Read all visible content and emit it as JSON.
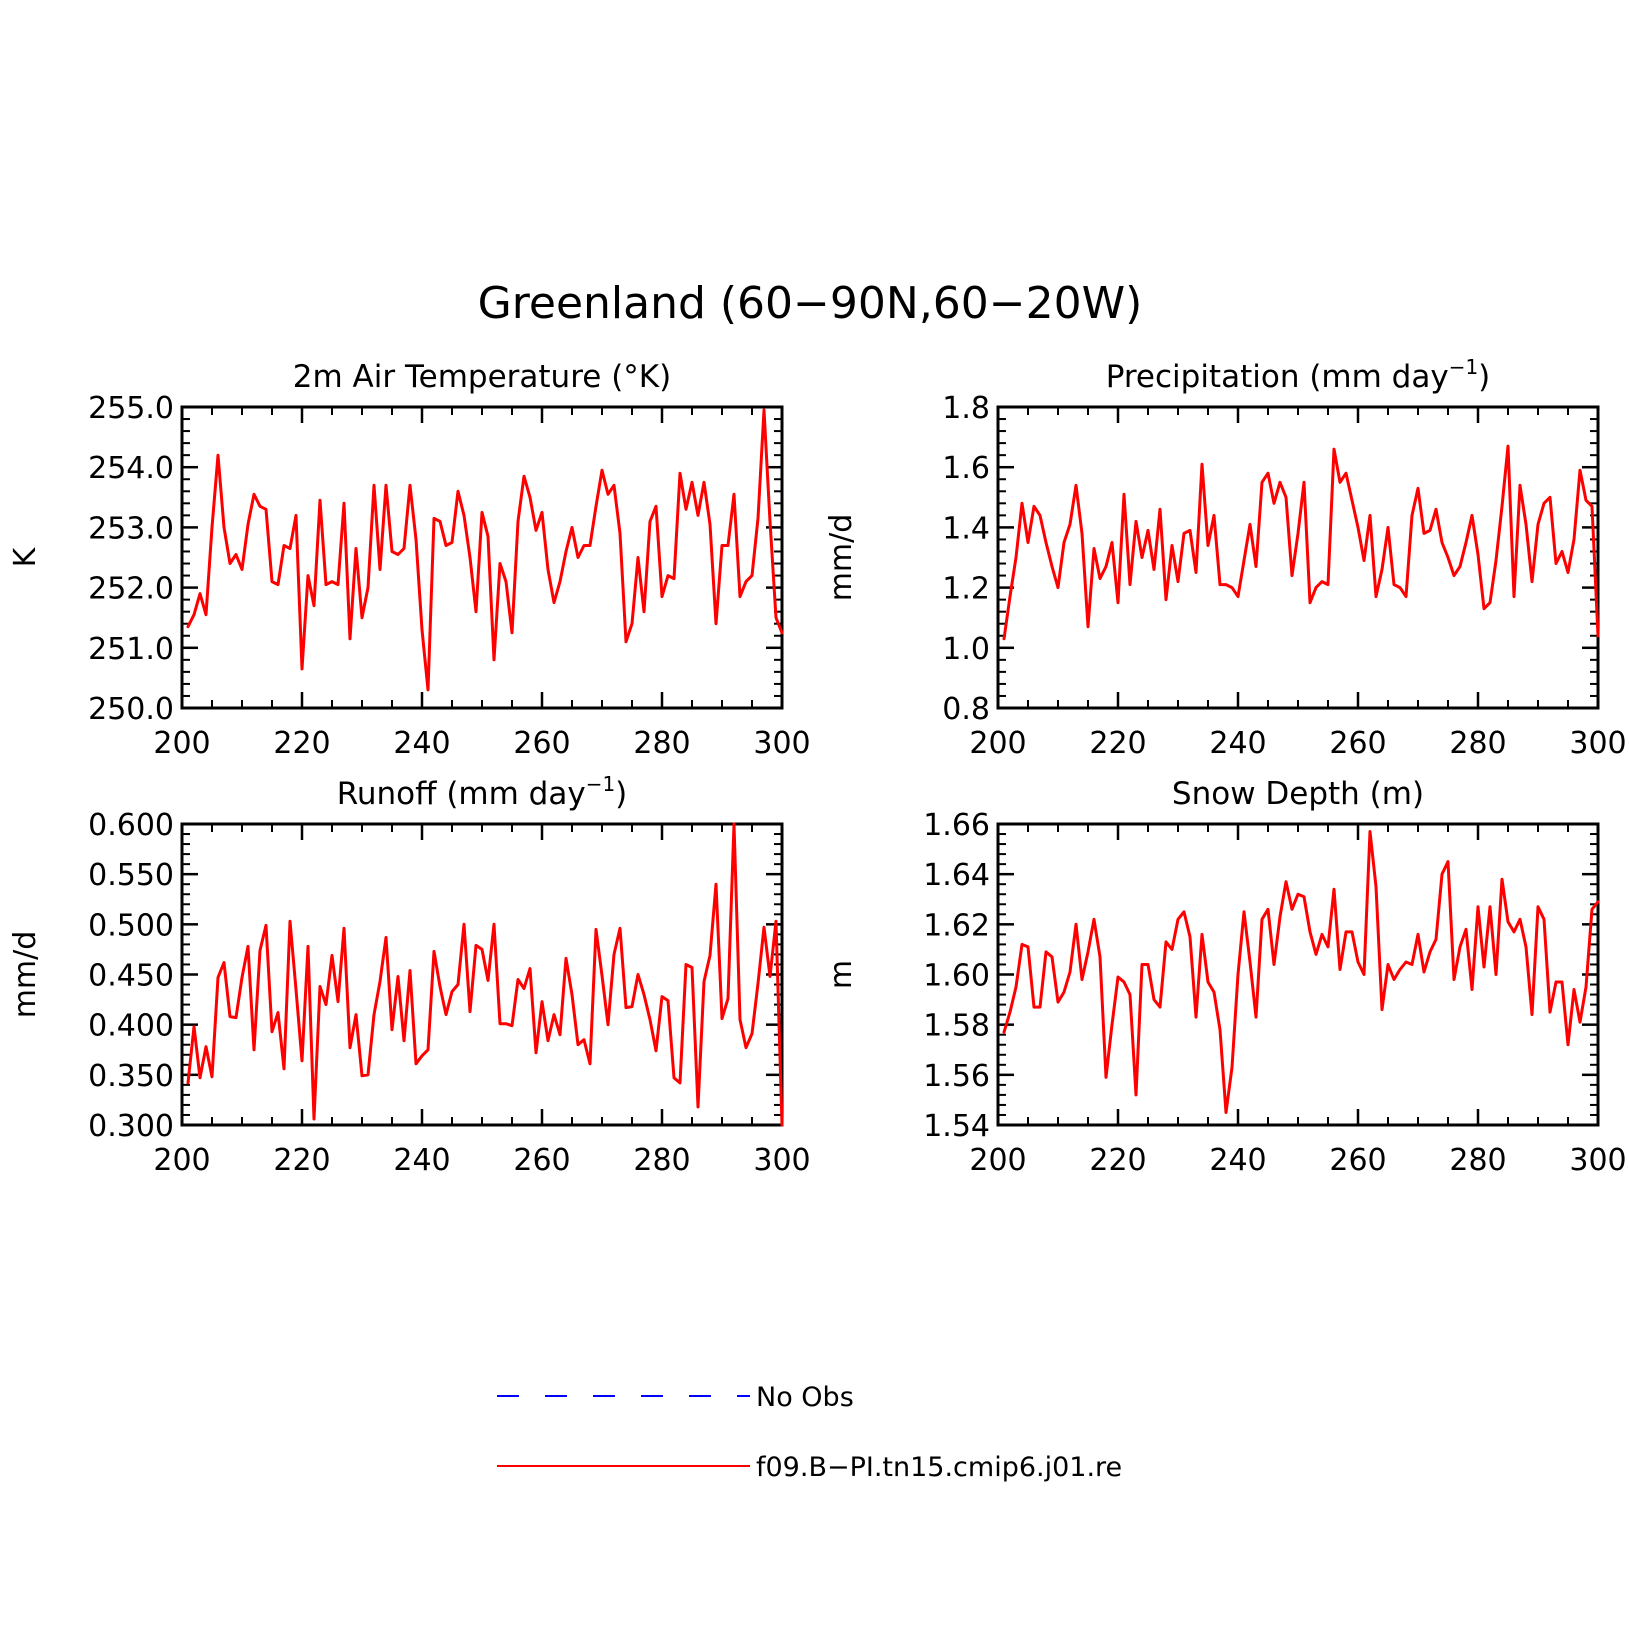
{
  "figure": {
    "title": "Greenland (60−90N,60−20W)"
  },
  "colors": {
    "model": "#ff0000",
    "obs": "#0000ff",
    "axes": "#000000"
  },
  "legend": {
    "entries": [
      {
        "label": "No Obs",
        "color": "#0000ff",
        "style": "dashed"
      },
      {
        "label": "f09.B−PI.tn15.cmip6.j01.re",
        "color": "#ff0000",
        "style": "solid"
      }
    ]
  },
  "chart_data": [
    {
      "type": "line",
      "title": "2m Air Temperature (°K)",
      "title_parts": {
        "main": "2m Air Temperature (°K)",
        "sup": ""
      },
      "ylabel": "K",
      "xlim": [
        200,
        300
      ],
      "ylim": [
        250.0,
        255.0
      ],
      "xticks": [
        200,
        220,
        240,
        260,
        280,
        300
      ],
      "xtick_labels": [
        "200",
        "220",
        "240",
        "260",
        "280",
        "300"
      ],
      "yticks": [
        250.0,
        251.0,
        252.0,
        253.0,
        254.0,
        255.0
      ],
      "ytick_labels": [
        "250.0",
        "251.0",
        "252.0",
        "253.0",
        "254.0",
        "255.0"
      ],
      "series": [
        {
          "name": "f09.B−PI.tn15.cmip6.j01.re",
          "x_start": 201,
          "x_step": 1,
          "values": [
            251.35,
            251.55,
            251.9,
            251.55,
            253.0,
            254.2,
            253.0,
            252.4,
            252.55,
            252.3,
            253.05,
            253.55,
            253.35,
            253.3,
            252.1,
            252.05,
            252.7,
            252.65,
            253.2,
            250.65,
            252.2,
            251.7,
            253.45,
            252.05,
            252.1,
            252.05,
            253.4,
            251.15,
            252.65,
            251.5,
            252.0,
            253.7,
            252.3,
            253.7,
            252.6,
            252.55,
            252.65,
            253.7,
            252.8,
            251.3,
            250.3,
            253.15,
            253.1,
            252.7,
            252.75,
            253.6,
            253.2,
            252.5,
            251.6,
            253.25,
            252.85,
            250.8,
            252.4,
            252.1,
            251.25,
            253.1,
            253.85,
            253.5,
            252.95,
            253.25,
            252.3,
            251.75,
            252.1,
            252.6,
            253.0,
            252.5,
            252.7,
            252.7,
            253.35,
            253.95,
            253.55,
            253.7,
            252.9,
            251.1,
            251.4,
            252.5,
            251.6,
            253.1,
            253.35,
            251.85,
            252.2,
            252.15,
            253.9,
            253.3,
            253.75,
            253.2,
            253.75,
            253.05,
            251.4,
            252.7,
            252.7,
            253.55,
            251.85,
            252.1,
            252.2,
            253.15,
            254.95,
            253.1,
            251.5,
            251.25
          ]
        }
      ]
    },
    {
      "type": "line",
      "title": "Precipitation (mm day⁻¹)",
      "title_parts": {
        "main": "Precipitation (mm day",
        "sup": "−1",
        "tail": ")"
      },
      "ylabel": "mm/d",
      "xlim": [
        200,
        300
      ],
      "ylim": [
        0.8,
        1.8
      ],
      "xticks": [
        200,
        220,
        240,
        260,
        280,
        300
      ],
      "xtick_labels": [
        "200",
        "220",
        "240",
        "260",
        "280",
        "300"
      ],
      "yticks": [
        0.8,
        1.0,
        1.2,
        1.4,
        1.6,
        1.8
      ],
      "ytick_labels": [
        "0.8",
        "1.0",
        "1.2",
        "1.4",
        "1.6",
        "1.8"
      ],
      "series": [
        {
          "name": "f09.B−PI.tn15.cmip6.j01.re",
          "x_start": 201,
          "x_step": 1,
          "values": [
            1.03,
            1.17,
            1.3,
            1.48,
            1.35,
            1.47,
            1.44,
            1.35,
            1.27,
            1.2,
            1.35,
            1.41,
            1.54,
            1.38,
            1.07,
            1.33,
            1.23,
            1.27,
            1.35,
            1.15,
            1.51,
            1.21,
            1.42,
            1.3,
            1.39,
            1.26,
            1.46,
            1.16,
            1.34,
            1.22,
            1.38,
            1.39,
            1.25,
            1.61,
            1.34,
            1.44,
            1.21,
            1.21,
            1.2,
            1.17,
            1.29,
            1.41,
            1.27,
            1.55,
            1.58,
            1.48,
            1.55,
            1.5,
            1.24,
            1.38,
            1.55,
            1.15,
            1.2,
            1.22,
            1.21,
            1.66,
            1.55,
            1.58,
            1.49,
            1.4,
            1.29,
            1.44,
            1.17,
            1.26,
            1.4,
            1.21,
            1.2,
            1.17,
            1.44,
            1.53,
            1.38,
            1.39,
            1.46,
            1.35,
            1.3,
            1.24,
            1.27,
            1.35,
            1.44,
            1.31,
            1.13,
            1.15,
            1.29,
            1.47,
            1.67,
            1.17,
            1.54,
            1.41,
            1.22,
            1.41,
            1.48,
            1.5,
            1.28,
            1.32,
            1.25,
            1.36,
            1.59,
            1.49,
            1.47,
            1.04
          ]
        }
      ]
    },
    {
      "type": "line",
      "title": "Runoff (mm day⁻¹)",
      "title_parts": {
        "main": "Runoff (mm day",
        "sup": "−1",
        "tail": ")"
      },
      "ylabel": "mm/d",
      "xlim": [
        200,
        300
      ],
      "ylim": [
        0.3,
        0.6
      ],
      "xticks": [
        200,
        220,
        240,
        260,
        280,
        300
      ],
      "xtick_labels": [
        "200",
        "220",
        "240",
        "260",
        "280",
        "300"
      ],
      "yticks": [
        0.3,
        0.35,
        0.4,
        0.45,
        0.5,
        0.55,
        0.6
      ],
      "ytick_labels": [
        "0.300",
        "0.350",
        "0.400",
        "0.450",
        "0.500",
        "0.550",
        "0.600"
      ],
      "series": [
        {
          "name": "f09.B−PI.tn15.cmip6.j01.re",
          "x_start": 201,
          "x_step": 1,
          "values": [
            0.342,
            0.398,
            0.347,
            0.378,
            0.348,
            0.447,
            0.462,
            0.408,
            0.407,
            0.447,
            0.478,
            0.375,
            0.474,
            0.499,
            0.393,
            0.412,
            0.356,
            0.503,
            0.435,
            0.364,
            0.478,
            0.306,
            0.438,
            0.42,
            0.469,
            0.423,
            0.496,
            0.377,
            0.41,
            0.349,
            0.35,
            0.41,
            0.443,
            0.487,
            0.395,
            0.448,
            0.384,
            0.454,
            0.361,
            0.369,
            0.375,
            0.473,
            0.438,
            0.41,
            0.433,
            0.44,
            0.5,
            0.413,
            0.479,
            0.475,
            0.444,
            0.5,
            0.401,
            0.401,
            0.399,
            0.445,
            0.436,
            0.456,
            0.372,
            0.423,
            0.384,
            0.41,
            0.39,
            0.466,
            0.43,
            0.38,
            0.385,
            0.361,
            0.495,
            0.449,
            0.4,
            0.47,
            0.496,
            0.417,
            0.418,
            0.45,
            0.43,
            0.405,
            0.374,
            0.428,
            0.424,
            0.347,
            0.342,
            0.46,
            0.457,
            0.318,
            0.443,
            0.469,
            0.54,
            0.406,
            0.426,
            0.6,
            0.405,
            0.377,
            0.391,
            0.441,
            0.497,
            0.448,
            0.503,
            0.3
          ]
        }
      ]
    },
    {
      "type": "line",
      "title": "Snow Depth (m)",
      "title_parts": {
        "main": "Snow Depth (m)",
        "sup": ""
      },
      "ylabel": "m",
      "xlim": [
        200,
        300
      ],
      "ylim": [
        1.54,
        1.66
      ],
      "xticks": [
        200,
        220,
        240,
        260,
        280,
        300
      ],
      "xtick_labels": [
        "200",
        "220",
        "240",
        "260",
        "280",
        "300"
      ],
      "yticks": [
        1.54,
        1.56,
        1.58,
        1.6,
        1.62,
        1.64,
        1.66
      ],
      "ytick_labels": [
        "1.54",
        "1.56",
        "1.58",
        "1.60",
        "1.62",
        "1.64",
        "1.66"
      ],
      "series": [
        {
          "name": "f09.B−PI.tn15.cmip6.j01.re",
          "x_start": 201,
          "x_step": 1,
          "values": [
            1.577,
            1.585,
            1.595,
            1.612,
            1.611,
            1.587,
            1.587,
            1.609,
            1.607,
            1.589,
            1.593,
            1.601,
            1.62,
            1.598,
            1.609,
            1.622,
            1.607,
            1.559,
            1.58,
            1.599,
            1.597,
            1.592,
            1.552,
            1.604,
            1.604,
            1.59,
            1.587,
            1.613,
            1.61,
            1.622,
            1.625,
            1.615,
            1.583,
            1.616,
            1.597,
            1.593,
            1.578,
            1.545,
            1.563,
            1.6,
            1.625,
            1.605,
            1.583,
            1.622,
            1.626,
            1.604,
            1.623,
            1.637,
            1.626,
            1.632,
            1.631,
            1.617,
            1.608,
            1.616,
            1.611,
            1.634,
            1.602,
            1.617,
            1.617,
            1.605,
            1.6,
            1.657,
            1.635,
            1.586,
            1.604,
            1.598,
            1.602,
            1.605,
            1.604,
            1.616,
            1.601,
            1.609,
            1.614,
            1.64,
            1.645,
            1.598,
            1.611,
            1.618,
            1.594,
            1.627,
            1.603,
            1.627,
            1.6,
            1.638,
            1.621,
            1.617,
            1.622,
            1.611,
            1.584,
            1.627,
            1.622,
            1.585,
            1.597,
            1.597,
            1.572,
            1.594,
            1.581,
            1.595,
            1.626,
            1.629
          ]
        }
      ]
    }
  ]
}
